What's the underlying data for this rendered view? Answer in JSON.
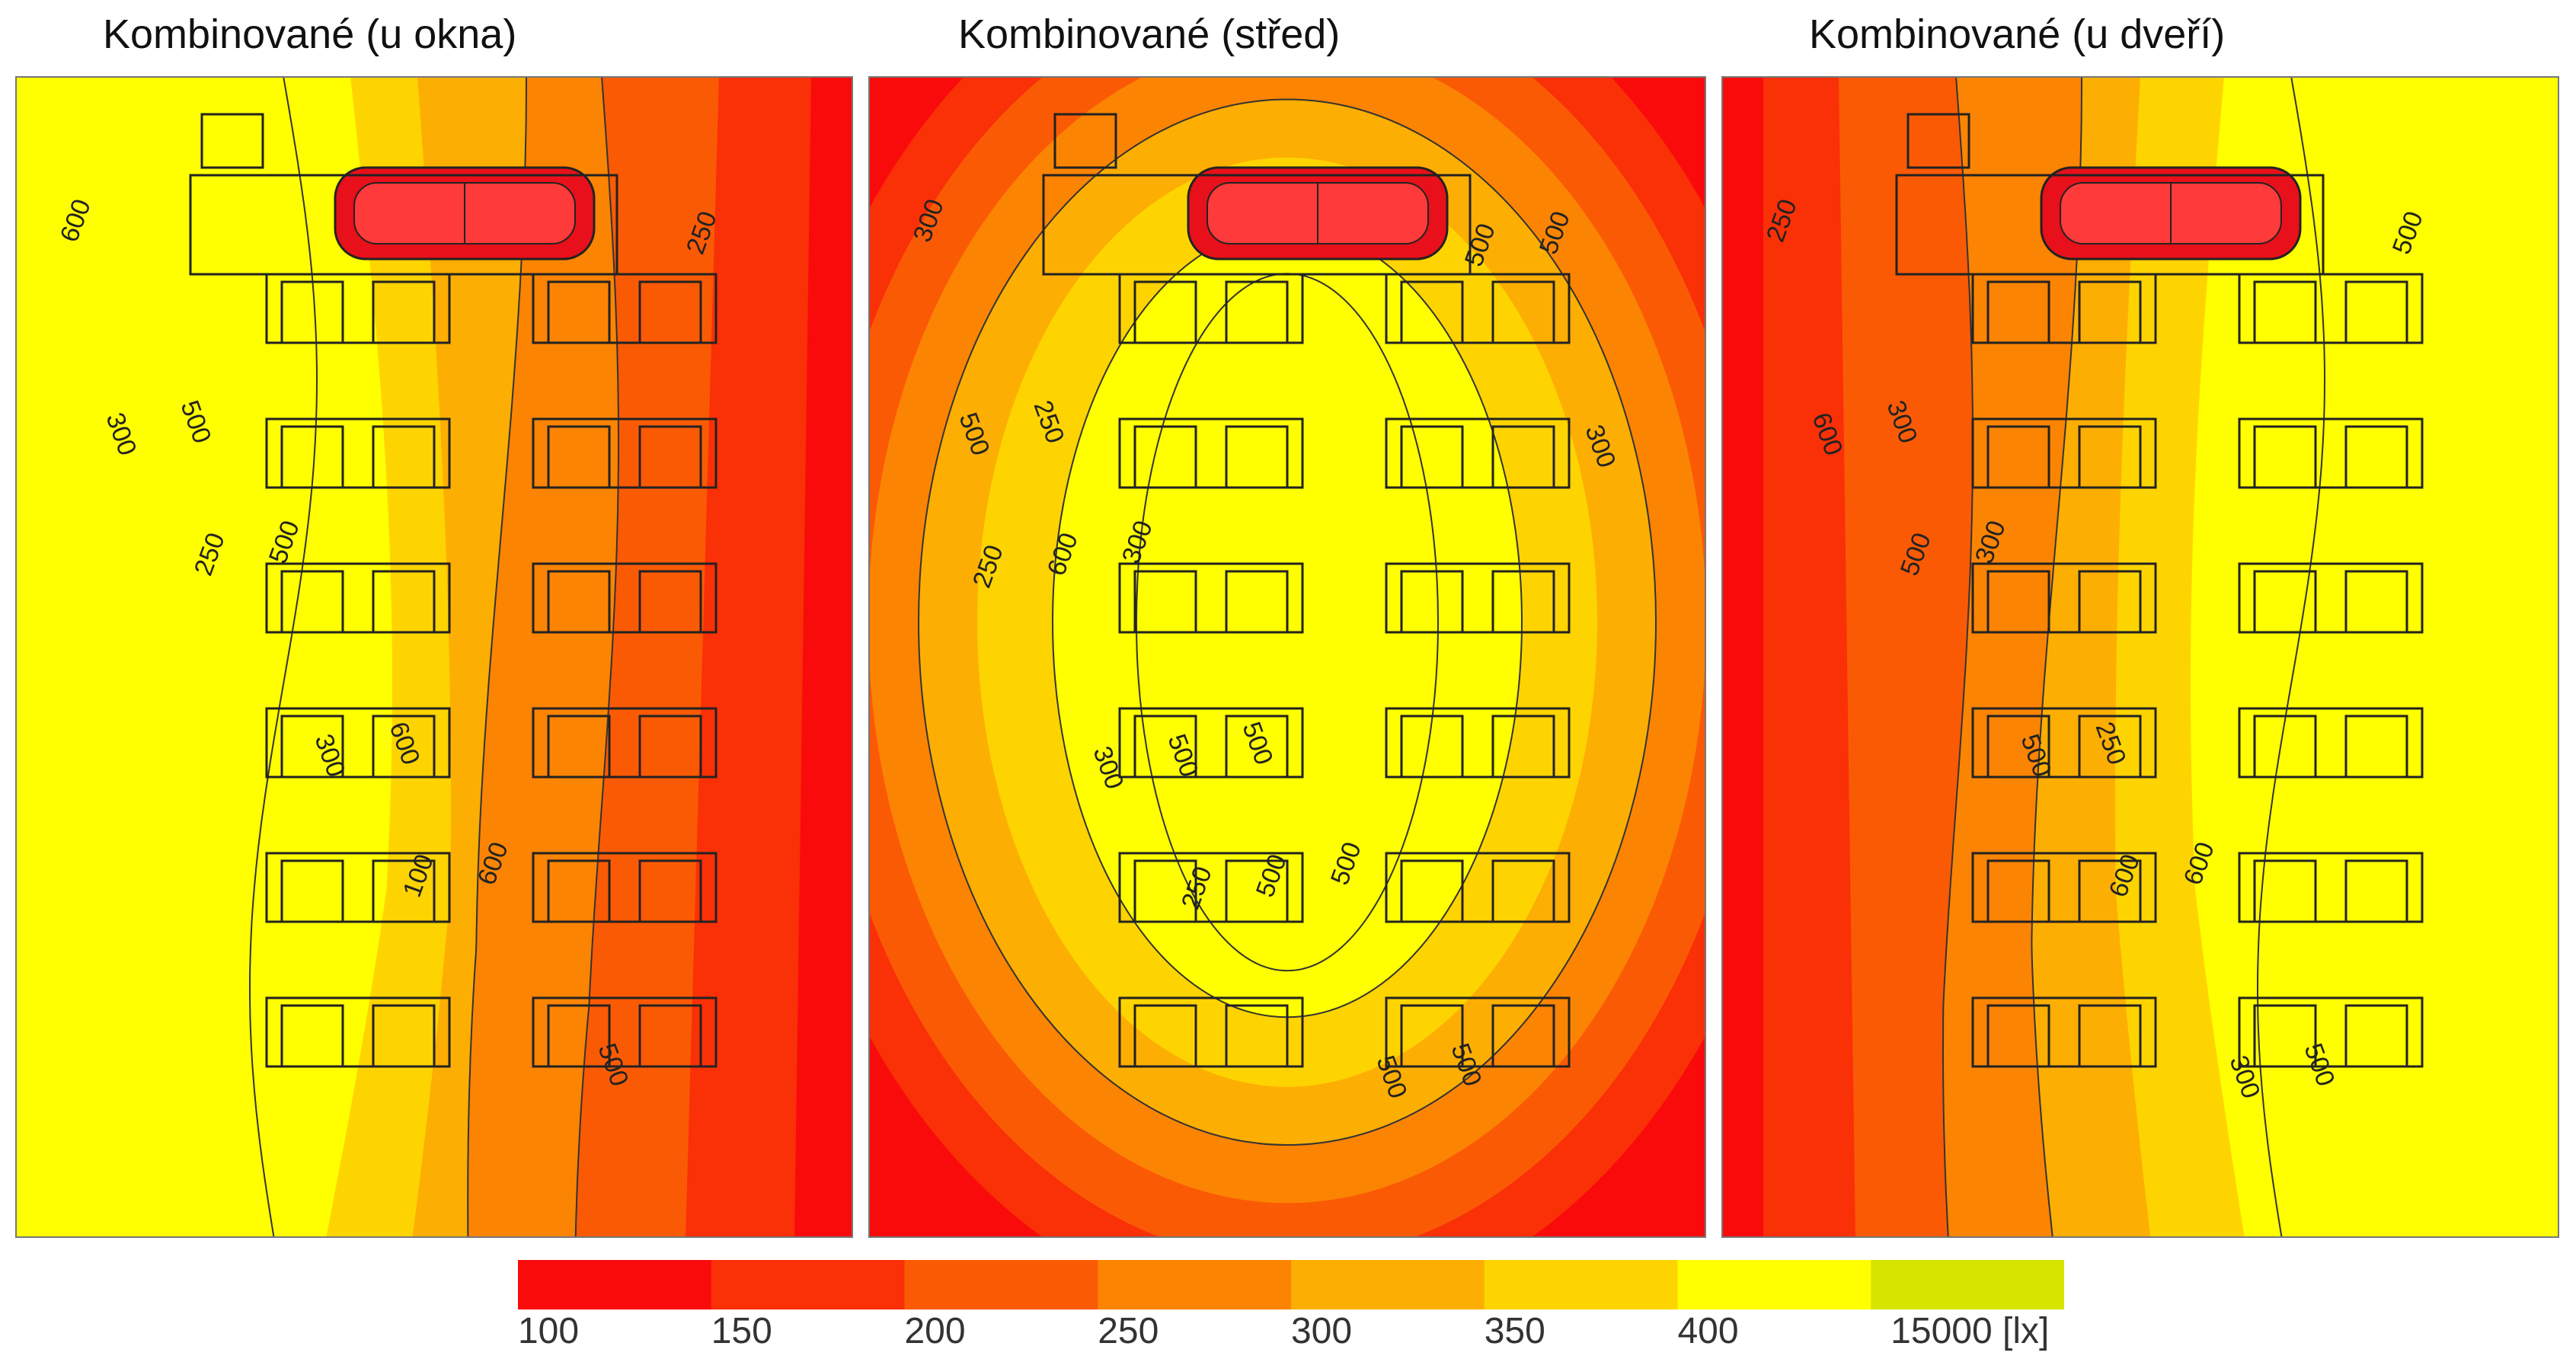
{
  "chart_data": {
    "type": "heatmap",
    "panels": [
      {
        "title": "Kombinované (u okna)",
        "profile": "window",
        "contour_labels": [
          "600",
          "500",
          "500",
          "600",
          "600",
          "500",
          "250",
          "300",
          "250",
          "300",
          "100"
        ]
      },
      {
        "title": "Kombinované (střed)",
        "profile": "center",
        "contour_labels": [
          "300",
          "250",
          "300",
          "500",
          "500",
          "500",
          "500",
          "500",
          "600",
          "500",
          "500",
          "500",
          "500",
          "300",
          "250",
          "300",
          "250"
        ]
      },
      {
        "title": "Kombinované (u dveří)",
        "profile": "door",
        "contour_labels": [
          "250",
          "300",
          "300",
          "250",
          "600",
          "500",
          "500",
          "600",
          "500",
          "500",
          "600",
          "300"
        ]
      }
    ],
    "legend": {
      "ticks": [
        "100",
        "150",
        "200",
        "250",
        "300",
        "350",
        "400",
        "15000 [lx]"
      ],
      "bins": [
        {
          "from": 100,
          "to": 150,
          "color": "#fa0b0b"
        },
        {
          "from": 150,
          "to": 200,
          "color": "#fa3007"
        },
        {
          "from": 200,
          "to": 250,
          "color": "#fb5a05"
        },
        {
          "from": 250,
          "to": 300,
          "color": "#fc8403"
        },
        {
          "from": 300,
          "to": 350,
          "color": "#fdae02"
        },
        {
          "from": 350,
          "to": 400,
          "color": "#fed400"
        },
        {
          "from": 400,
          "to": 15000,
          "color": "#ffff00"
        },
        {
          "from": 15000,
          "to": null,
          "color": "#d6e400"
        }
      ]
    }
  }
}
